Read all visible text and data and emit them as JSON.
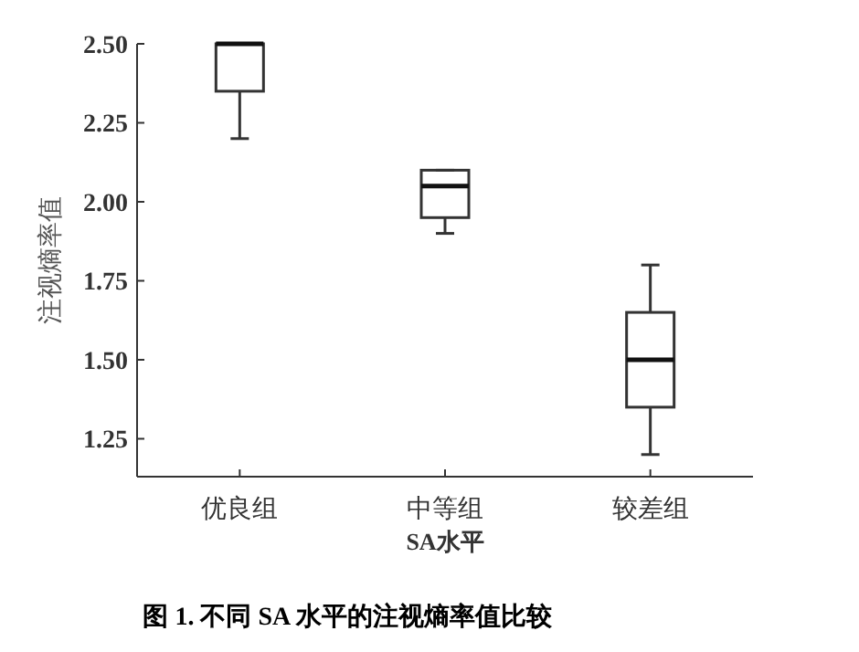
{
  "chart_data": {
    "type": "box",
    "categories": [
      "优良组",
      "中等组",
      "较差组"
    ],
    "boxes": [
      {
        "low": 2.2,
        "q1": 2.35,
        "median": 2.5,
        "q3": 2.5,
        "high": 2.5
      },
      {
        "low": 1.9,
        "q1": 1.95,
        "median": 2.05,
        "q3": 2.1,
        "high": 2.1
      },
      {
        "low": 1.2,
        "q1": 1.35,
        "median": 1.5,
        "q3": 1.65,
        "high": 1.8
      }
    ],
    "xlabel": "SA水平",
    "ylabel": "注视熵率值",
    "ylim": [
      1.13,
      2.5
    ],
    "yticks": [
      {
        "value": 1.25,
        "label": "1.25"
      },
      {
        "value": 1.5,
        "label": "1.50"
      },
      {
        "value": 1.75,
        "label": "1.75"
      },
      {
        "value": 2,
        "label": "2.00"
      },
      {
        "value": 2.25,
        "label": "2.25"
      },
      {
        "value": 2.5,
        "label": "2.50"
      }
    ],
    "annotations": [
      "图 1. 不同 SA 水平的注视熵率值比较"
    ]
  }
}
